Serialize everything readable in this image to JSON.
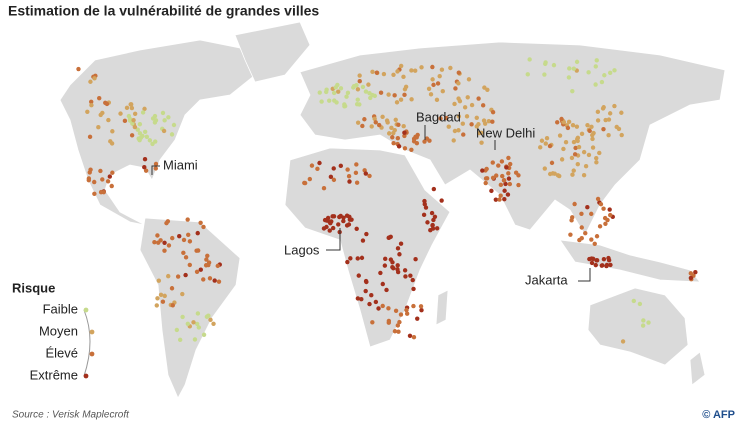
{
  "title": "Estimation de la vulnérabilité de grandes villes",
  "cities": [
    {
      "label": "Miami"
    },
    {
      "label": "Bagdad"
    },
    {
      "label": "New Delhi"
    },
    {
      "label": "Lagos"
    },
    {
      "label": "Jakarta"
    }
  ],
  "legend": {
    "title": "Risque",
    "items": [
      {
        "label": "Faible",
        "color": "#c6da8c"
      },
      {
        "label": "Moyen",
        "color": "#d2a45e"
      },
      {
        "label": "Élevé",
        "color": "#c8703a"
      },
      {
        "label": "Extrême",
        "color": "#a3301c"
      }
    ]
  },
  "source": "Source : Verisk Maplecroft",
  "credit": "© AFP"
}
